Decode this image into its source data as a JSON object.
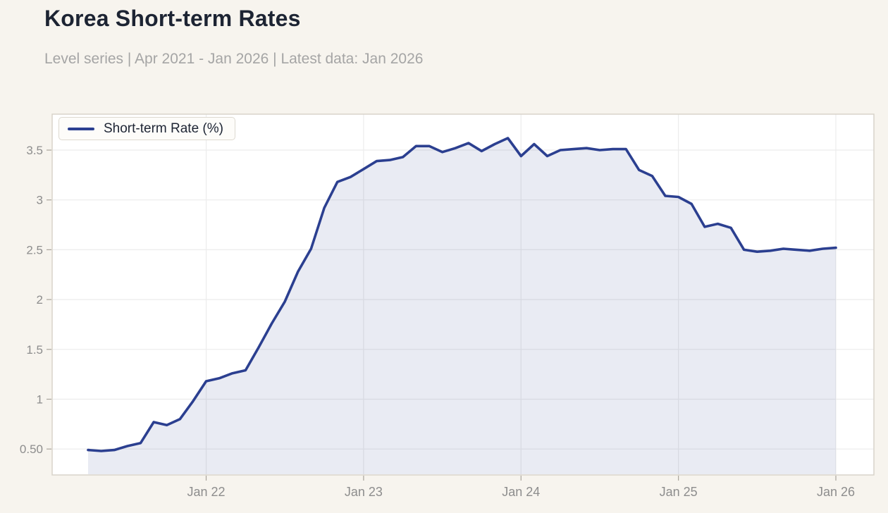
{
  "page": {
    "background": "#f7f4ee"
  },
  "header": {
    "title": "Korea Short-term Rates",
    "subtitle": "Level series | Apr 2021 - Jan 2026 | Latest data: Jan 2026"
  },
  "legend": {
    "label": "Short-term Rate (%)"
  },
  "chart_data": {
    "type": "area",
    "title": "Korea Short-term Rates",
    "xlabel": "",
    "ylabel": "",
    "x_start": "Apr 2021",
    "x_end": "Jan 2026",
    "frequency": "monthly",
    "series": [
      {
        "name": "Short-term Rate (%)",
        "values": [
          0.49,
          0.48,
          0.49,
          0.53,
          0.56,
          0.77,
          0.74,
          0.8,
          0.98,
          1.18,
          1.21,
          1.26,
          1.29,
          1.52,
          1.76,
          1.98,
          2.28,
          2.51,
          2.92,
          3.18,
          3.23,
          3.31,
          3.39,
          3.4,
          3.43,
          3.54,
          3.54,
          3.48,
          3.52,
          3.57,
          3.49,
          3.56,
          3.62,
          3.44,
          3.56,
          3.44,
          3.5,
          3.51,
          3.52,
          3.5,
          3.51,
          3.51,
          3.3,
          3.24,
          3.04,
          3.03,
          2.96,
          2.73,
          2.76,
          2.72,
          2.5,
          2.48,
          2.49,
          2.51,
          2.5,
          2.49,
          2.51,
          2.52
        ]
      }
    ],
    "x_ticks": [
      {
        "label": "Jan 22",
        "index": 9
      },
      {
        "label": "Jan 23",
        "index": 21
      },
      {
        "label": "Jan 24",
        "index": 33
      },
      {
        "label": "Jan 25",
        "index": 45
      },
      {
        "label": "Jan 26",
        "index": 57
      }
    ],
    "y_ticks": [
      {
        "label": "0.50",
        "value": 0.5
      },
      {
        "label": "1",
        "value": 1.0
      },
      {
        "label": "1.5",
        "value": 1.5
      },
      {
        "label": "2",
        "value": 2.0
      },
      {
        "label": "2.5",
        "value": 2.5
      },
      {
        "label": "3",
        "value": 3.0
      },
      {
        "label": "3.5",
        "value": 3.5
      }
    ],
    "ylim": [
      0.24,
      3.86
    ],
    "grid": true,
    "legend_position": "upper-left",
    "colors": {
      "line": "#2b3f90",
      "fill": "rgba(44,63,142,0.10)",
      "grid": "#ececec",
      "plot_bg": "#ffffff",
      "plot_border": "#d8d3ca",
      "tick_mark": "#a9a49c",
      "tick_text": "#8d8d8d",
      "title_text": "#1d2433",
      "subtitle_text": "#a5a5a5",
      "page_bg": "#f7f4ee"
    }
  }
}
